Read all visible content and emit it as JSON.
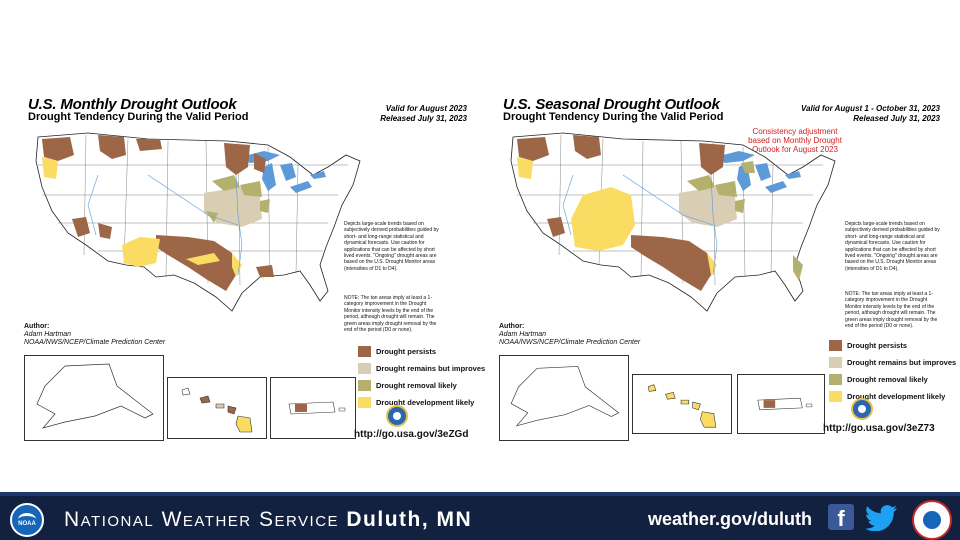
{
  "monthly": {
    "title": "U.S. Monthly Drought Outlook",
    "subtitle": "Drought Tendency During the Valid Period",
    "valid_line": "Valid for August 2023",
    "released_line": "Released July 31, 2023",
    "note1": "Depicts large-scale trends based on subjectively derived probabilities guided by short- and long-range statistical and dynamical forecasts. Use caution for applications that can be affected by short lived events. \"Ongoing\" drought areas are based on the U.S. Drought Monitor areas (intensities of D1 to D4).",
    "note2": "NOTE: The tan areas imply at least a 1-category improvement in the Drought Monitor intensity levels by the end of the period, although drought will remain. The green areas imply drought removal by the end of the period (D0 or none).",
    "author_label": "Author:",
    "author_name": "Adam Hartman",
    "author_org": "NOAA/NWS/NCEP/Climate Prediction Center",
    "url": "http://go.usa.gov/3eZGd"
  },
  "seasonal": {
    "title": "U.S. Seasonal Drought Outlook",
    "subtitle": "Drought Tendency During the Valid Period",
    "valid_line": "Valid for August 1 - October 31, 2023",
    "released_line": "Released July 31, 2023",
    "consistency_note": "Consistency adjustment based on Monthly Drought Outlook for August 2023",
    "note1": "Depicts large-scale trends based on subjectively derived probabilities guided by short- and long-range statistical and dynamical forecasts. Use caution for applications that can be affected by short lived events. \"Ongoing\" drought areas are based on the U.S. Drought Monitor areas (intensities of D1 to D4).",
    "note2": "NOTE: The tan areas imply at least a 1-category improvement in the Drought Monitor intensity levels by the end of the period, although drought will remain. The green areas imply drought removal by the end of the period (D0 or none).",
    "author_label": "Author:",
    "author_name": "Adam Hartman",
    "author_org": "NOAA/NWS/NCEP/Climate Prediction Center",
    "url": "http://go.usa.gov/3eZ73"
  },
  "legend": [
    {
      "label": "Drought persists",
      "color": "#9c6647"
    },
    {
      "label": "Drought remains but improves",
      "color": "#d9cdb4"
    },
    {
      "label": "Drought removal likely",
      "color": "#b4b06d"
    },
    {
      "label": "Drought development likely",
      "color": "#fbdc62"
    }
  ],
  "colors": {
    "footer_bg": "#11213f",
    "lakes": "#5c9ad8",
    "persists": "#9c6647",
    "improves": "#d9cdb4",
    "removal": "#b4b06d",
    "development": "#fbdc62"
  },
  "footer": {
    "org_prefix": "National Weather Service",
    "org_city": "Duluth, MN",
    "website": "weather.gov/duluth",
    "noaa_logo_text": "NOAA",
    "icons": [
      "facebook-icon",
      "twitter-icon",
      "nws-logo-icon"
    ]
  }
}
